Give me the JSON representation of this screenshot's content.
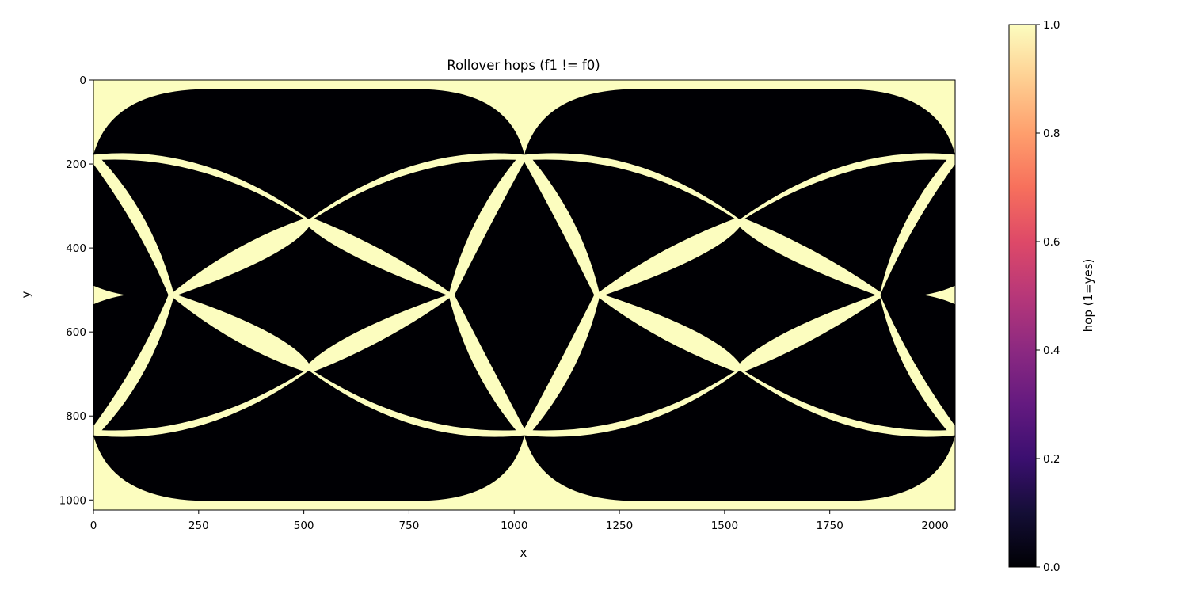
{
  "chart_data": {
    "type": "heatmap",
    "title": "Rollover hops (f1 != f0)",
    "xlabel": "x",
    "ylabel": "y",
    "xlim": [
      0,
      2048
    ],
    "ylim": [
      1024,
      0
    ],
    "y_axis_inverted": true,
    "xticks": [
      0,
      250,
      500,
      750,
      1000,
      1250,
      1500,
      1750,
      2000
    ],
    "yticks": [
      0,
      200,
      400,
      600,
      800,
      1000
    ],
    "colormap": "magma",
    "value_range": [
      0,
      1
    ],
    "values_present": [
      0,
      1
    ],
    "grid": false,
    "colorbar": {
      "label": "hop (1=yes)",
      "ticks": [
        0.0,
        0.2,
        0.4,
        0.6,
        0.8,
        1.0
      ],
      "tick_labels": [
        "0.0",
        "0.2",
        "0.4",
        "0.6",
        "0.8",
        "1.0"
      ],
      "placement": "right"
    },
    "colors": {
      "value_0": "#000004",
      "value_1": "#fcfdbf"
    },
    "pattern": {
      "description": "periodic lattice of lens-shaped hop regions (value 1) on a background of 0",
      "intersection_nodes": [
        [
          0,
          178
        ],
        [
          512,
          178
        ],
        [
          1024,
          178
        ],
        [
          1536,
          178
        ],
        [
          2048,
          178
        ],
        [
          512,
          332
        ],
        [
          1536,
          332
        ],
        [
          178,
          512
        ],
        [
          846,
          512
        ],
        [
          1202,
          512
        ],
        [
          1870,
          512
        ],
        [
          512,
          692
        ],
        [
          1536,
          692
        ],
        [
          0,
          846
        ],
        [
          512,
          846
        ],
        [
          1024,
          846
        ],
        [
          1536,
          846
        ],
        [
          2048,
          846
        ]
      ],
      "corner_regions": "value 1 fills the four corners and the top/bottom center near x=1024"
    }
  }
}
